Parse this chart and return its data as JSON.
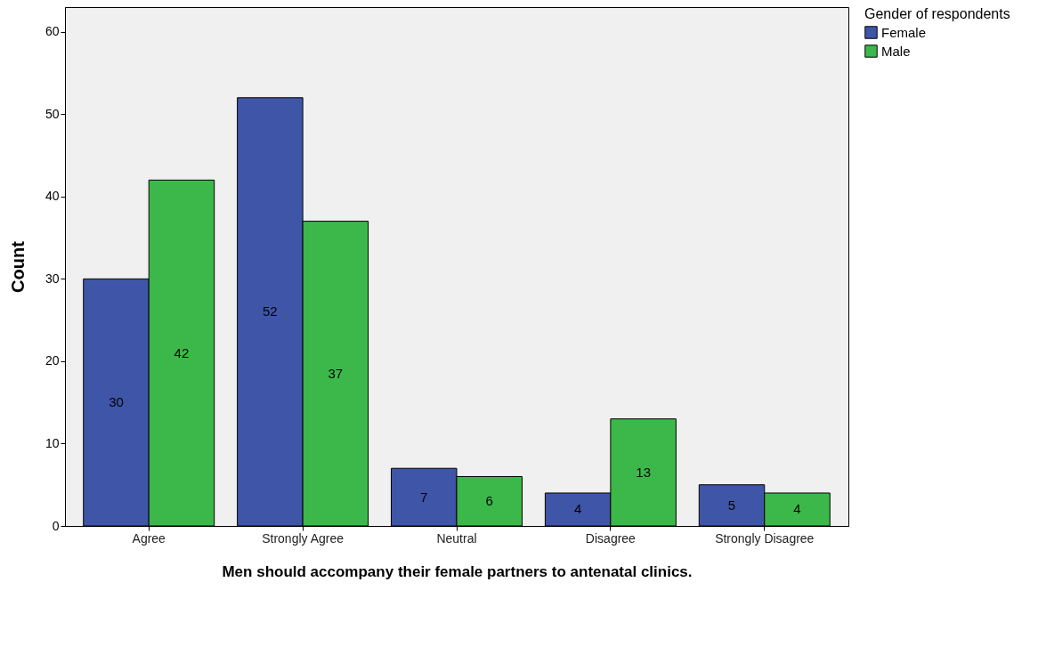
{
  "chart_data": {
    "type": "bar",
    "xlabel": "Men should accompany their female partners to antenatal clinics.",
    "ylabel": "Count",
    "legend_title": "Gender of respondents",
    "categories": [
      "Agree",
      "Strongly Agree",
      "Neutral",
      "Disagree",
      "Strongly Disagree"
    ],
    "series": [
      {
        "name": "Female",
        "color": "#3f55a8",
        "values": [
          30,
          52,
          7,
          4,
          5
        ]
      },
      {
        "name": "Male",
        "color": "#3cb84a",
        "values": [
          42,
          37,
          6,
          13,
          4
        ]
      }
    ],
    "ylim": [
      0,
      63
    ],
    "yticks": [
      0,
      10,
      20,
      30,
      40,
      50,
      60
    ],
    "grid": false,
    "legend": "top right",
    "data_labels": true
  }
}
